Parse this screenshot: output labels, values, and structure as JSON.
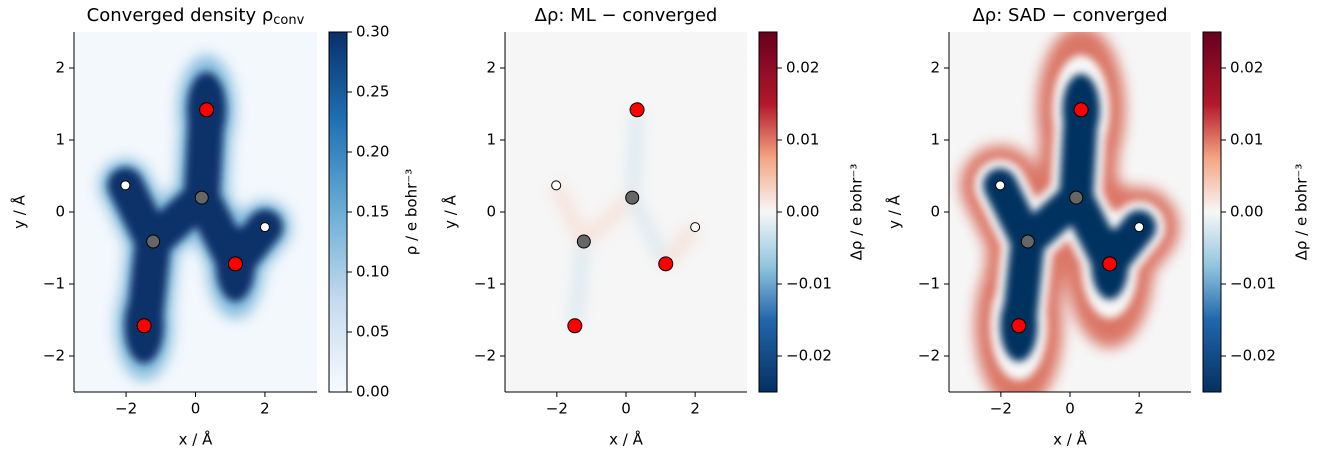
{
  "chart_data": [
    {
      "type": "heatmap",
      "title": "Converged density ρ",
      "title_sub": "conv",
      "xlabel": "x / Å",
      "ylabel": "y / Å",
      "colorbar_label": "ρ / e bohr⁻³",
      "colormap": "Blues",
      "xlim": [
        -3.5,
        3.5
      ],
      "ylim": [
        -2.5,
        2.5
      ],
      "xticks": [
        {
          "value": -2,
          "label": "−2"
        },
        0,
        2
      ],
      "yticks": [
        {
          "value": -2,
          "label": "−2"
        },
        {
          "value": -1,
          "label": "−1"
        },
        0,
        1,
        2
      ],
      "clim": [
        0,
        0.3
      ],
      "cticks": [
        {
          "value": 0,
          "label": "0.00"
        },
        {
          "value": 0.05,
          "label": "0.05"
        },
        {
          "value": 0.1,
          "label": "0.10"
        },
        {
          "value": 0.15,
          "label": "0.15"
        },
        {
          "value": 0.2,
          "label": "0.20"
        },
        {
          "value": 0.25,
          "label": "0.25"
        },
        {
          "value": 0.3,
          "label": "0.30"
        }
      ],
      "x": [
        0.32,
        1.15,
        -1.48,
        0.18,
        -1.22,
        -2.02,
        2.0
      ],
      "y": [
        1.42,
        -0.72,
        -1.58,
        0.2,
        -0.41,
        0.37,
        -0.21
      ],
      "sizes": [
        7,
        7,
        7,
        6.5,
        6.5,
        4.5,
        4.5
      ],
      "colors": [
        "#ff0000",
        "#ff0000",
        "#ff0000",
        "#666666",
        "#666666",
        "#ffffff",
        "#ffffff"
      ]
    },
    {
      "type": "heatmap",
      "title": "Δρ: ML − converged",
      "xlabel": "x / Å",
      "ylabel": "y / Å",
      "colorbar_label": "Δρ / e bohr⁻³",
      "colormap": "RdBu_r",
      "xlim": [
        -3.5,
        3.5
      ],
      "ylim": [
        -2.5,
        2.5
      ],
      "xticks": [
        {
          "value": -2,
          "label": "−2"
        },
        0,
        2
      ],
      "yticks": [
        {
          "value": -2,
          "label": "−2"
        },
        {
          "value": -1,
          "label": "−1"
        },
        0,
        1,
        2
      ],
      "clim": [
        -0.025,
        0.025
      ],
      "cticks": [
        {
          "value": -0.02,
          "label": "−0.02"
        },
        {
          "value": -0.01,
          "label": "−0.01"
        },
        {
          "value": 0,
          "label": "0.00"
        },
        {
          "value": 0.01,
          "label": "0.01"
        },
        {
          "value": 0.02,
          "label": "0.02"
        }
      ],
      "x": [
        0.32,
        1.15,
        -1.48,
        0.18,
        -1.22,
        -2.02,
        2.0
      ],
      "y": [
        1.42,
        -0.72,
        -1.58,
        0.2,
        -0.41,
        0.37,
        -0.21
      ],
      "sizes": [
        7,
        7,
        7,
        6.5,
        6.5,
        4.5,
        4.5
      ],
      "colors": [
        "#ff0000",
        "#ff0000",
        "#ff0000",
        "#666666",
        "#666666",
        "#ffffff",
        "#ffffff"
      ]
    },
    {
      "type": "heatmap",
      "title": "Δρ: SAD − converged",
      "xlabel": "x / Å",
      "ylabel": "y / Å",
      "colorbar_label": "Δρ / e bohr⁻³",
      "colormap": "RdBu_r",
      "xlim": [
        -3.5,
        3.5
      ],
      "ylim": [
        -2.5,
        2.5
      ],
      "xticks": [
        {
          "value": -2,
          "label": "−2"
        },
        0,
        2
      ],
      "yticks": [
        {
          "value": -2,
          "label": "−2"
        },
        {
          "value": -1,
          "label": "−1"
        },
        0,
        1,
        2
      ],
      "clim": [
        -0.025,
        0.025
      ],
      "cticks": [
        {
          "value": -0.02,
          "label": "−0.02"
        },
        {
          "value": -0.01,
          "label": "−0.01"
        },
        {
          "value": 0,
          "label": "0.00"
        },
        {
          "value": 0.01,
          "label": "0.01"
        },
        {
          "value": 0.02,
          "label": "0.02"
        }
      ],
      "x": [
        0.32,
        1.15,
        -1.48,
        0.18,
        -1.22,
        -2.02,
        2.0
      ],
      "y": [
        1.42,
        -0.72,
        -1.58,
        0.2,
        -0.41,
        0.37,
        -0.21
      ],
      "sizes": [
        7,
        7,
        7,
        6.5,
        6.5,
        4.5,
        4.5
      ],
      "colors": [
        "#ff0000",
        "#ff0000",
        "#ff0000",
        "#666666",
        "#666666",
        "#ffffff",
        "#ffffff"
      ]
    }
  ]
}
